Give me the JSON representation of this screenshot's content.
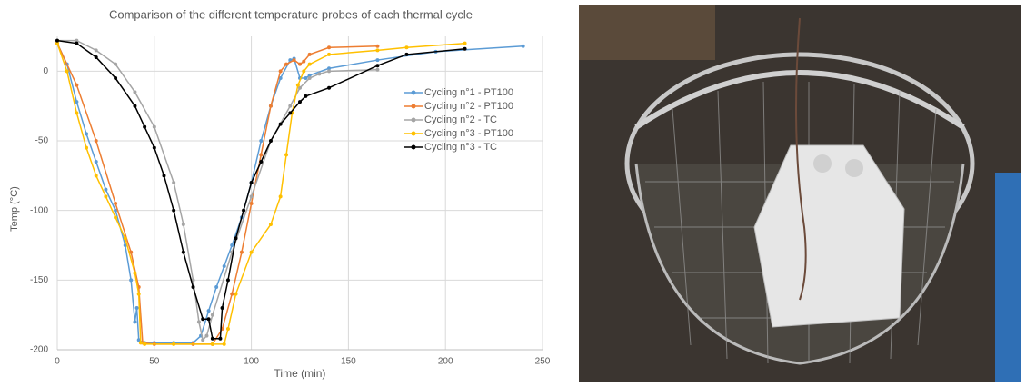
{
  "chart_data": {
    "type": "line",
    "title": "Comparison of the different temperature probes of each thermal cycle",
    "x_label": "Time (min)",
    "y_label": "Temp (°C)",
    "xlim": [
      0,
      250
    ],
    "xticks": [
      0,
      50,
      100,
      150,
      200,
      250
    ],
    "ylim": [
      -200,
      25
    ],
    "yticks": [
      -200,
      -150,
      -100,
      -50,
      0
    ],
    "grid": true,
    "legend": "right",
    "series": [
      {
        "name": "Cycling n°1 - PT100",
        "color": "#5b9bd5",
        "x": [
          0,
          5,
          10,
          15,
          20,
          25,
          30,
          35,
          38,
          40,
          41,
          42,
          45,
          50,
          60,
          70,
          74,
          78,
          82,
          86,
          90,
          95,
          100,
          105,
          110,
          115,
          120,
          122,
          125,
          128,
          130,
          140,
          165,
          195,
          240
        ],
        "values": [
          20,
          5,
          -22,
          -45,
          -65,
          -85,
          -100,
          -125,
          -150,
          -180,
          -170,
          -193,
          -195,
          -195,
          -195,
          -195,
          -190,
          -172,
          -155,
          -140,
          -125,
          -105,
          -80,
          -50,
          -25,
          -5,
          8,
          9,
          -5,
          -5,
          -3,
          2,
          8,
          14,
          18
        ]
      },
      {
        "name": "Cycling n°2 - PT100",
        "color": "#ed7d31",
        "x": [
          0,
          10,
          20,
          30,
          38,
          42,
          44,
          50,
          70,
          80,
          85,
          90,
          95,
          100,
          105,
          110,
          115,
          118,
          122,
          125,
          127,
          130,
          140,
          165
        ],
        "values": [
          20,
          -10,
          -50,
          -95,
          -130,
          -155,
          -195,
          -196,
          -196,
          -196,
          -185,
          -160,
          -130,
          -95,
          -60,
          -25,
          0,
          5,
          8,
          5,
          7,
          12,
          17,
          18
        ]
      },
      {
        "name": "Cycling n°2 - TC",
        "color": "#a5a5a5",
        "x": [
          0,
          10,
          20,
          30,
          40,
          50,
          60,
          65,
          70,
          73,
          75,
          77,
          80,
          90,
          100,
          110,
          120,
          125,
          130,
          135,
          140,
          165
        ],
        "values": [
          22,
          22,
          15,
          5,
          -15,
          -40,
          -80,
          -110,
          -150,
          -180,
          -193,
          -190,
          -175,
          -130,
          -90,
          -50,
          -25,
          -12,
          -5,
          -2,
          0,
          1
        ]
      },
      {
        "name": "Cycling n°3 - PT100",
        "color": "#ffc000",
        "x": [
          0,
          5,
          10,
          15,
          20,
          25,
          30,
          35,
          40,
          42,
          43,
          45,
          60,
          80,
          86,
          88,
          92,
          100,
          110,
          115,
          118,
          121,
          124,
          127,
          130,
          140,
          165,
          180,
          210
        ],
        "values": [
          20,
          0,
          -30,
          -55,
          -75,
          -90,
          -105,
          -120,
          -145,
          -160,
          -195,
          -196,
          -196,
          -196,
          -196,
          -185,
          -160,
          -130,
          -110,
          -90,
          -60,
          -30,
          -10,
          0,
          5,
          12,
          15,
          17,
          20
        ]
      },
      {
        "name": "Cycling n°3 - TC",
        "color": "#000000",
        "x": [
          0,
          10,
          20,
          30,
          40,
          45,
          50,
          55,
          60,
          65,
          70,
          75,
          78,
          80,
          84,
          85,
          88,
          92,
          96,
          100,
          105,
          110,
          115,
          120,
          125,
          128,
          140,
          165,
          180,
          210
        ],
        "values": [
          22,
          20,
          10,
          -5,
          -25,
          -40,
          -55,
          -75,
          -100,
          -130,
          -155,
          -178,
          -178,
          -192,
          -192,
          -170,
          -150,
          -120,
          -100,
          -80,
          -65,
          -50,
          -38,
          -30,
          -22,
          -18,
          -12,
          4,
          12,
          16
        ]
      }
    ]
  }
}
